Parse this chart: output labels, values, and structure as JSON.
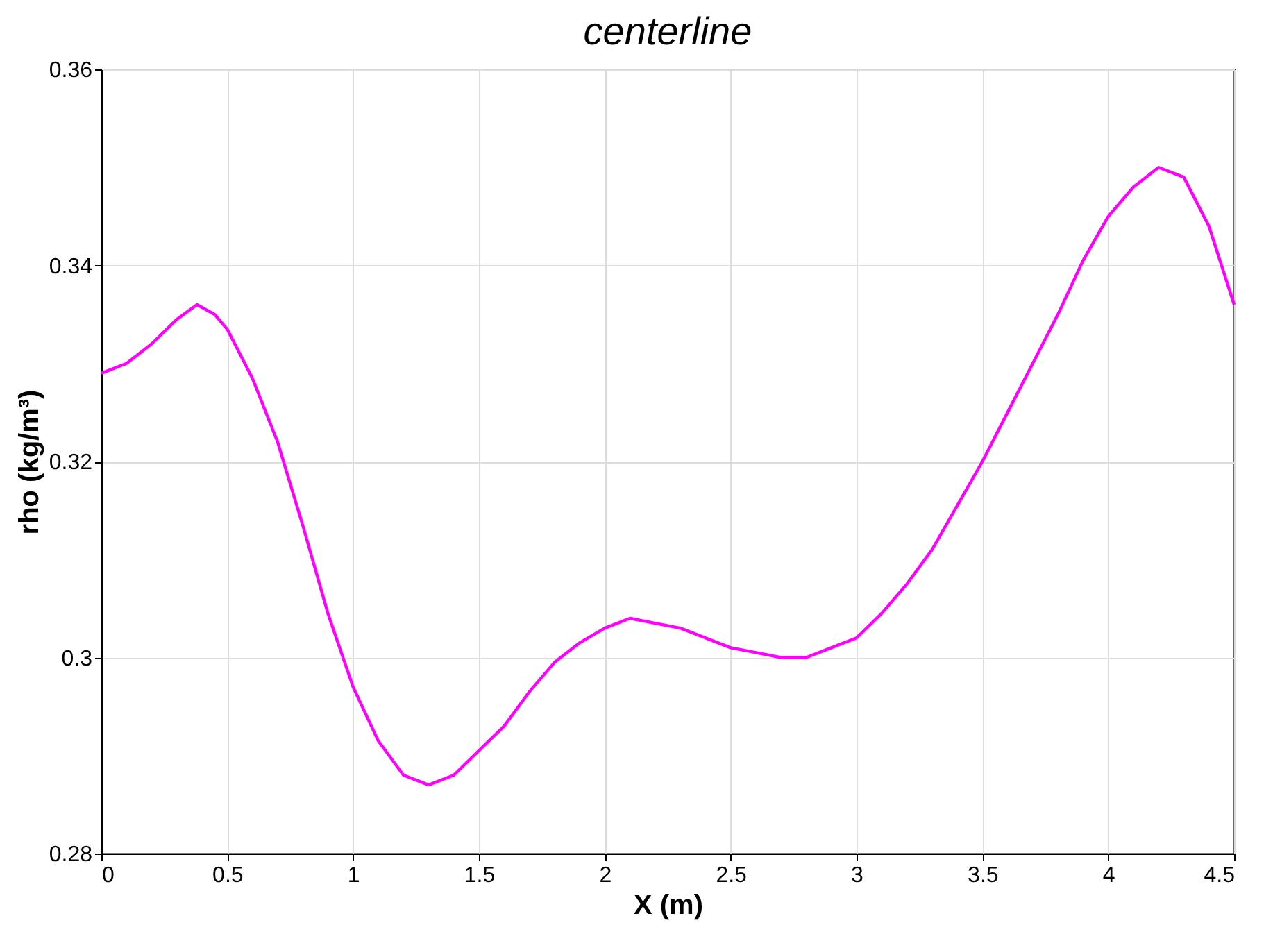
{
  "chart_data": {
    "type": "line",
    "title": "centerline",
    "xlabel": "X (m)",
    "ylabel": "rho (kg/m³)",
    "xlim": [
      0,
      4.5
    ],
    "xticks": [
      0,
      0.5,
      1,
      1.5,
      2,
      2.5,
      3,
      3.5,
      4,
      4.5
    ],
    "ylim": [
      0.28,
      0.36
    ],
    "yticks": [
      0.28,
      0.3,
      0.32,
      0.34,
      0.36
    ],
    "grid": true,
    "marker": "none",
    "line_style": "solid",
    "series": [
      {
        "color": "#ff00ff",
        "x": [
          0,
          0.1,
          0.2,
          0.3,
          0.38,
          0.45,
          0.5,
          0.6,
          0.7,
          0.8,
          0.9,
          1.0,
          1.1,
          1.2,
          1.3,
          1.4,
          1.5,
          1.6,
          1.7,
          1.8,
          1.9,
          2.0,
          2.1,
          2.2,
          2.3,
          2.4,
          2.5,
          2.6,
          2.7,
          2.8,
          2.9,
          3.0,
          3.1,
          3.2,
          3.3,
          3.4,
          3.5,
          3.6,
          3.7,
          3.8,
          3.9,
          4.0,
          4.1,
          4.2,
          4.3,
          4.4,
          4.5
        ],
        "values": [
          0.329,
          0.33,
          0.332,
          0.3345,
          0.336,
          0.335,
          0.3335,
          0.3285,
          0.322,
          0.3135,
          0.3045,
          0.297,
          0.2915,
          0.288,
          0.287,
          0.288,
          0.2905,
          0.293,
          0.2965,
          0.2995,
          0.3015,
          0.303,
          0.304,
          0.3035,
          0.303,
          0.302,
          0.301,
          0.3005,
          0.3,
          0.3,
          0.301,
          0.302,
          0.3045,
          0.3075,
          0.311,
          0.3155,
          0.32,
          0.325,
          0.33,
          0.335,
          0.3405,
          0.345,
          0.348,
          0.35,
          0.349,
          0.344,
          0.336
        ]
      }
    ]
  }
}
